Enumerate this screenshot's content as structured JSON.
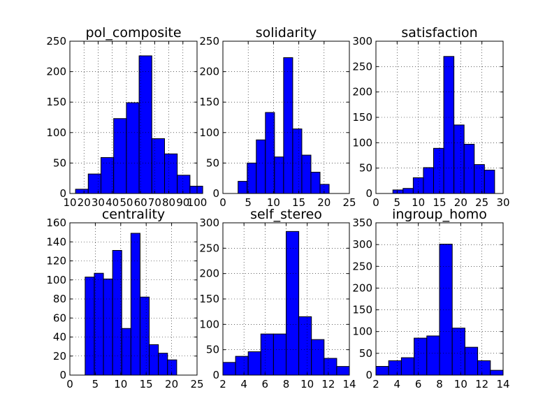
{
  "chart_data": [
    {
      "type": "bar",
      "title": "pol_composite",
      "xlim": [
        10,
        100
      ],
      "ylim": [
        0,
        250
      ],
      "xticks": [
        "10",
        "20",
        "30",
        "40",
        "50",
        "60",
        "70",
        "80",
        "90",
        "100"
      ],
      "yticks": [
        "0",
        "50",
        "100",
        "150",
        "200",
        "250"
      ],
      "bins": [
        [
          14,
          23,
          7
        ],
        [
          23,
          32,
          32
        ],
        [
          32,
          41,
          59
        ],
        [
          41,
          50,
          123
        ],
        [
          50,
          59,
          149
        ],
        [
          59,
          68,
          226
        ],
        [
          68,
          77,
          90
        ],
        [
          77,
          86,
          65
        ],
        [
          86,
          95,
          30
        ],
        [
          95,
          104,
          12
        ]
      ],
      "grid": true
    },
    {
      "type": "bar",
      "title": "solidarity",
      "xlim": [
        0,
        25
      ],
      "ylim": [
        0,
        250
      ],
      "xticks": [
        "0",
        "5",
        "10",
        "15",
        "20",
        "25"
      ],
      "yticks": [
        "0",
        "50",
        "100",
        "150",
        "200",
        "250"
      ],
      "bins": [
        [
          3,
          4.8,
          20
        ],
        [
          4.8,
          6.6,
          50
        ],
        [
          6.6,
          8.4,
          88
        ],
        [
          8.4,
          10.2,
          133
        ],
        [
          10.2,
          12,
          60
        ],
        [
          12,
          13.8,
          223
        ],
        [
          13.8,
          15.6,
          106
        ],
        [
          15.6,
          17.4,
          63
        ],
        [
          17.4,
          19.2,
          35
        ],
        [
          19.2,
          21,
          15
        ]
      ],
      "grid": true
    },
    {
      "type": "bar",
      "title": "satisfaction",
      "xlim": [
        0,
        30
      ],
      "ylim": [
        0,
        300
      ],
      "xticks": [
        "0",
        "5",
        "10",
        "15",
        "20",
        "25",
        "30"
      ],
      "yticks": [
        "0",
        "50",
        "100",
        "150",
        "200",
        "250",
        "300"
      ],
      "bins": [
        [
          4,
          6.4,
          7
        ],
        [
          6.4,
          8.8,
          10
        ],
        [
          8.8,
          11.2,
          31
        ],
        [
          11.2,
          13.6,
          51
        ],
        [
          13.6,
          16,
          89
        ],
        [
          16,
          18.4,
          270
        ],
        [
          18.4,
          20.8,
          135
        ],
        [
          20.8,
          23.2,
          97
        ],
        [
          23.2,
          25.6,
          57
        ],
        [
          25.6,
          28,
          46
        ]
      ],
      "grid": true
    },
    {
      "type": "bar",
      "title": "centrality",
      "xlim": [
        0,
        25
      ],
      "ylim": [
        0,
        160
      ],
      "xticks": [
        "0",
        "5",
        "10",
        "15",
        "20",
        "25"
      ],
      "yticks": [
        "0",
        "20",
        "40",
        "60",
        "80",
        "100",
        "120",
        "140",
        "160"
      ],
      "bins": [
        [
          3,
          4.8,
          103
        ],
        [
          4.8,
          6.6,
          107
        ],
        [
          6.6,
          8.4,
          101
        ],
        [
          8.4,
          10.2,
          131
        ],
        [
          10.2,
          12,
          49
        ],
        [
          12,
          13.8,
          149
        ],
        [
          13.8,
          15.6,
          82
        ],
        [
          15.6,
          17.4,
          32
        ],
        [
          17.4,
          19.2,
          23
        ],
        [
          19.2,
          21,
          16
        ]
      ],
      "grid": true
    },
    {
      "type": "bar",
      "title": "self_stereo",
      "xlim": [
        2,
        14
      ],
      "ylim": [
        0,
        300
      ],
      "xticks": [
        "2",
        "4",
        "6",
        "8",
        "10",
        "12",
        "14"
      ],
      "yticks": [
        "0",
        "50",
        "100",
        "150",
        "200",
        "250",
        "300"
      ],
      "bins": [
        [
          2,
          3.2,
          25
        ],
        [
          3.2,
          4.4,
          37
        ],
        [
          4.4,
          5.6,
          46
        ],
        [
          5.6,
          6.8,
          81
        ],
        [
          6.8,
          8,
          81
        ],
        [
          8,
          9.2,
          283
        ],
        [
          9.2,
          10.4,
          115
        ],
        [
          10.4,
          11.6,
          70
        ],
        [
          11.6,
          12.8,
          33
        ],
        [
          12.8,
          14,
          17
        ]
      ],
      "grid": true
    },
    {
      "type": "bar",
      "title": "ingroup_homo",
      "xlim": [
        2,
        14
      ],
      "ylim": [
        0,
        350
      ],
      "xticks": [
        "2",
        "4",
        "6",
        "8",
        "10",
        "12",
        "14"
      ],
      "yticks": [
        "0",
        "50",
        "100",
        "150",
        "200",
        "250",
        "300",
        "350"
      ],
      "bins": [
        [
          2,
          3.2,
          20
        ],
        [
          3.2,
          4.4,
          33
        ],
        [
          4.4,
          5.6,
          40
        ],
        [
          5.6,
          6.8,
          85
        ],
        [
          6.8,
          8,
          90
        ],
        [
          8,
          9.2,
          301
        ],
        [
          9.2,
          10.4,
          108
        ],
        [
          10.4,
          11.6,
          64
        ],
        [
          11.6,
          12.8,
          33
        ],
        [
          12.8,
          14,
          11
        ]
      ],
      "grid": true
    }
  ],
  "colors": {
    "bar_fill": "#0000ff",
    "bar_edge": "#000000",
    "background": "#ffffff"
  }
}
